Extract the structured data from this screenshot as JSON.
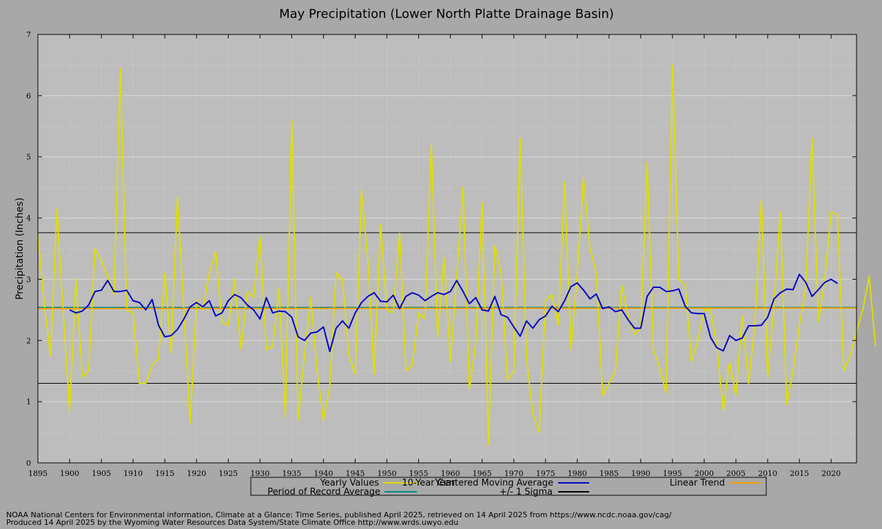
{
  "chart_data": {
    "type": "line",
    "title": "May Precipitation (Lower North Platte Drainage Basin)",
    "xlabel": "Year",
    "ylabel": "Precipitation (Inches)",
    "xlim": [
      1895,
      2024
    ],
    "ylim": [
      0,
      7
    ],
    "x_ticks": [
      1895,
      1900,
      1905,
      1910,
      1915,
      1920,
      1925,
      1930,
      1935,
      1940,
      1945,
      1950,
      1955,
      1960,
      1965,
      1970,
      1975,
      1980,
      1985,
      1990,
      1995,
      2000,
      2005,
      2010,
      2015,
      2020
    ],
    "y_ticks": [
      0,
      1,
      2,
      3,
      4,
      5,
      6,
      7
    ],
    "grid": true,
    "legend_placement": "bottom",
    "series": [
      {
        "name": "Yearly Values",
        "color": "#dede00",
        "x_start": 1895,
        "values": [
          3.72,
          2.6,
          1.75,
          4.15,
          2.45,
          0.85,
          3.0,
          1.4,
          1.5,
          3.5,
          3.3,
          3.05,
          2.75,
          6.45,
          2.5,
          2.45,
          1.3,
          1.3,
          1.6,
          1.7,
          3.1,
          1.8,
          4.35,
          2.5,
          0.65,
          2.65,
          2.5,
          3.1,
          3.45,
          2.3,
          2.25,
          3.0,
          1.85,
          2.8,
          2.7,
          3.7,
          1.85,
          1.9,
          2.85,
          0.75,
          5.6,
          0.7,
          1.75,
          2.7,
          1.5,
          0.7,
          1.25,
          3.1,
          3.0,
          1.75,
          1.45,
          4.45,
          3.3,
          1.45,
          3.9,
          2.5,
          2.45,
          3.75,
          1.5,
          1.6,
          2.45,
          2.35,
          5.2,
          2.05,
          3.35,
          1.65,
          3.05,
          4.5,
          1.2,
          1.95,
          4.25,
          0.3,
          3.55,
          3.1,
          1.35,
          1.5,
          5.3,
          1.7,
          0.8,
          0.5,
          2.65,
          2.75,
          2.25,
          4.6,
          1.85,
          3.1,
          4.65,
          3.5,
          3.1,
          1.1,
          1.3,
          1.5,
          2.9,
          2.4,
          2.1,
          2.2,
          4.9,
          1.85,
          1.55,
          1.15,
          6.5,
          3.0,
          2.9,
          1.65,
          2.0,
          2.5,
          2.5,
          1.9,
          0.85,
          1.65,
          1.1,
          2.4,
          1.3,
          2.3,
          4.3,
          1.4,
          2.6,
          4.1,
          0.95,
          1.5,
          2.25,
          2.85,
          5.3,
          2.3,
          3.0,
          4.1,
          4.05,
          1.5,
          1.75,
          2.15,
          2.5,
          3.05,
          1.9
        ]
      },
      {
        "name": "10-Year Centered Moving Average",
        "color": "#0000c8",
        "x_start": 1900,
        "values": [
          2.5,
          2.45,
          2.48,
          2.58,
          2.8,
          2.82,
          2.98,
          2.8,
          2.8,
          2.82,
          2.65,
          2.62,
          2.5,
          2.67,
          2.25,
          2.06,
          2.08,
          2.18,
          2.35,
          2.55,
          2.62,
          2.55,
          2.65,
          2.4,
          2.45,
          2.65,
          2.75,
          2.7,
          2.58,
          2.5,
          2.35,
          2.7,
          2.45,
          2.48,
          2.47,
          2.38,
          2.06,
          2.0,
          2.12,
          2.14,
          2.22,
          1.82,
          2.2,
          2.32,
          2.2,
          2.45,
          2.62,
          2.72,
          2.78,
          2.64,
          2.63,
          2.74,
          2.52,
          2.72,
          2.78,
          2.74,
          2.65,
          2.72,
          2.78,
          2.75,
          2.8,
          2.98,
          2.8,
          2.6,
          2.7,
          2.5,
          2.48,
          2.72,
          2.42,
          2.38,
          2.22,
          2.07,
          2.32,
          2.2,
          2.34,
          2.4,
          2.56,
          2.47,
          2.65,
          2.88,
          2.94,
          2.82,
          2.68,
          2.76,
          2.52,
          2.55,
          2.47,
          2.5,
          2.34,
          2.2,
          2.2,
          2.72,
          2.87,
          2.87,
          2.8,
          2.81,
          2.84,
          2.56,
          2.45,
          2.44,
          2.44,
          2.05,
          1.88,
          1.83,
          2.08,
          2.0,
          2.04,
          2.24,
          2.24,
          2.25,
          2.38,
          2.68,
          2.78,
          2.84,
          2.83,
          3.08,
          2.95,
          2.72,
          2.83,
          2.95,
          3.0,
          2.93
        ]
      },
      {
        "name": "Linear Trend",
        "color": "#f0a000",
        "endpoints": [
          [
            1895,
            2.52
          ],
          [
            2024,
            2.53
          ]
        ]
      },
      {
        "name": "Period of Record Average",
        "color": "#008a8a",
        "value": 2.54
      },
      {
        "name": "+/- 1 Sigma",
        "color": "#000000",
        "values": [
          1.3,
          3.76
        ]
      }
    ]
  },
  "footer": {
    "line1": "NOAA National Centers for Environmental information, Climate at a Glance: Time Series, published April 2025, retrieved on 14 April 2025 from https://www.ncdc.noaa.gov/cag/",
    "line2": "Produced 14 April 2025 by the Wyoming Water Resources Data System/State Climate Office http://www.wrds.uwyo.edu"
  }
}
